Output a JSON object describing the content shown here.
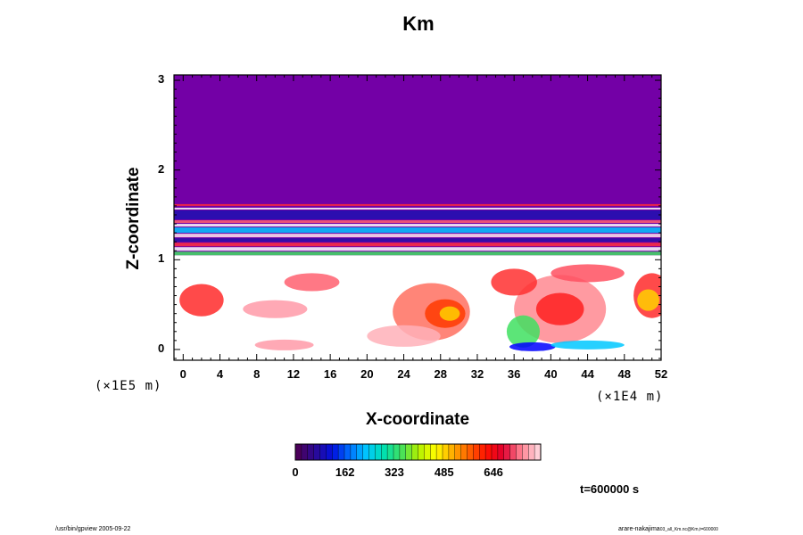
{
  "chart_data": {
    "type": "heatmap",
    "title": "Km",
    "xlabel": "X-coordinate",
    "ylabel": "Z-coordinate",
    "x_unit": "(×1E4 m)",
    "y_unit": "(×1E5 m)",
    "x_ticks": [
      "0",
      "4",
      "8",
      "12",
      "16",
      "20",
      "24",
      "28",
      "32",
      "36",
      "40",
      "44",
      "48",
      "52"
    ],
    "y_ticks": [
      "0",
      "1",
      "2",
      "3"
    ],
    "xlim": [
      -1,
      52
    ],
    "ylim": [
      -0.12,
      3.06
    ],
    "colorbar": {
      "tick_labels": [
        "0",
        "162",
        "323",
        "485",
        "646"
      ],
      "range": [
        0,
        800
      ],
      "colors": [
        "#4b005a",
        "#2a0a96",
        "#0010e0",
        "#0070ff",
        "#00c8ff",
        "#00e0b0",
        "#40e060",
        "#b0f000",
        "#ffff00",
        "#ffb000",
        "#ff6000",
        "#ff1000",
        "#e00030",
        "#ff8090",
        "#ffd0d8"
      ]
    },
    "background_color": "#7300a6",
    "time_label": "t=600000 s"
  },
  "footer": {
    "left": "/usr/bin/gpview 2005-09-22",
    "right": "arare-nakajima",
    "right_small": "03_all_Km.nc@Km,t=600000"
  }
}
